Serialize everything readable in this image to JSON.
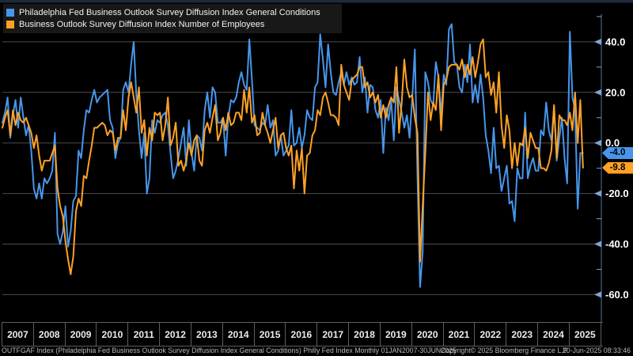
{
  "legend": {
    "items": [
      {
        "label": "Philadelphia Fed Business Outlook Survey Diffusion Index General Conditions",
        "color": "#4796ec"
      },
      {
        "label": "Business Outlook Survey Diffusion Index Number of Employees",
        "color": "#ffa226"
      }
    ]
  },
  "chart_data": {
    "type": "line",
    "title": "Philadelphia Fed Business Outlook Survey Diffusion Index",
    "frequency": "Monthly",
    "period": "01JAN2007-30JUN2025",
    "x_tick_years": [
      "2007",
      "2008",
      "2009",
      "2010",
      "2011",
      "2012",
      "2013",
      "2014",
      "2015",
      "2016",
      "2017",
      "2018",
      "2019",
      "2020",
      "2021",
      "2022",
      "2023",
      "2024",
      "2025"
    ],
    "y_ticks": [
      40,
      20,
      0,
      -20,
      -40,
      -60
    ],
    "y_tick_labels": [
      "40.0",
      "20.0",
      "0.0",
      "-20.0",
      "-40.0",
      "-60.0"
    ],
    "y_minor_ticks": [
      50,
      30,
      10,
      -10,
      -30,
      -50
    ],
    "ylim": [
      -70,
      51
    ],
    "grid": "horizontal",
    "legend_position": "top-left",
    "colors": {
      "grid": "#4c4c4c",
      "axis": "#35506e",
      "tick_arrow": "#7ea6d4",
      "background": "#000000"
    },
    "series": [
      {
        "name": "Philadelphia Fed Business Outlook Survey Diffusion Index General Conditions",
        "color": "#4796ec",
        "last_value": -4.0,
        "last_label": "-4.0",
        "start": "2007-01",
        "values": [
          8,
          12,
          18,
          2,
          11,
          17,
          6,
          18,
          10,
          3,
          7,
          -3,
          -18,
          -22,
          -16,
          -22,
          -14,
          -16,
          -14,
          -11,
          4,
          -36,
          -40,
          -35,
          -25,
          -41,
          -35,
          -23,
          -21,
          -3,
          -6,
          5,
          13,
          12,
          17,
          21,
          16,
          18,
          19,
          20,
          21,
          9,
          6,
          -6,
          0,
          2,
          21,
          24,
          20,
          31,
          40,
          19,
          5,
          -6,
          4,
          -20,
          -14,
          9,
          4,
          9,
          8,
          11,
          12,
          7,
          -4,
          -14,
          -11,
          -6,
          0,
          6,
          -9,
          9,
          -4,
          -11,
          3,
          2,
          -3,
          13,
          20,
          10,
          22,
          20,
          8,
          8,
          10,
          -5,
          10,
          17,
          16,
          18,
          24,
          28,
          23,
          21,
          41,
          25,
          7,
          6,
          5,
          8,
          7,
          15,
          6,
          9,
          -5,
          -3,
          3,
          -5,
          -3,
          -1,
          13,
          -1,
          0,
          6,
          -2,
          3,
          13,
          10,
          9,
          22,
          24,
          43,
          33,
          22,
          39,
          28,
          20,
          19,
          24,
          28,
          23,
          28,
          23,
          26,
          23,
          24,
          34,
          20,
          26,
          12,
          23,
          22,
          13,
          10,
          17,
          -4,
          14,
          9,
          17,
          1,
          22,
          17,
          12,
          6,
          11,
          2,
          17,
          37,
          -13,
          -57,
          -43,
          28,
          24,
          17,
          15,
          32,
          26,
          11,
          27,
          23,
          45,
          47,
          32,
          31,
          22,
          20,
          31,
          24,
          39,
          16,
          23,
          16,
          27,
          18,
          3,
          -3,
          -12,
          6,
          -10,
          -9,
          -19,
          -14,
          -9,
          -24,
          -23,
          -31,
          -10,
          -14,
          -14,
          12,
          -14,
          -9,
          -6,
          -11,
          -11,
          5,
          3,
          16,
          5,
          1,
          14,
          -7,
          2,
          10,
          -6,
          -16,
          44,
          18,
          13,
          -26,
          -4,
          -4
        ]
      },
      {
        "name": "Business Outlook Survey Diffusion Index Number of Employees",
        "color": "#ffa226",
        "last_value": -9.8,
        "last_label": "-9.8",
        "start": "2007-01",
        "values": [
          6,
          10,
          13,
          3,
          13,
          7,
          12,
          9,
          8,
          10,
          7,
          4,
          -2,
          3,
          -5,
          -11,
          -7,
          -7,
          -7,
          -4,
          -1,
          -18,
          -25,
          -29,
          -39,
          -46,
          -52,
          -45,
          -27,
          -22,
          -25,
          -13,
          -14,
          -7,
          -1,
          6,
          6,
          7,
          8,
          7,
          3,
          5,
          4,
          -3,
          2,
          2,
          13,
          5,
          18,
          24,
          18,
          12,
          22,
          4,
          9,
          -5,
          6,
          1,
          12,
          11,
          12,
          1,
          7,
          18,
          -1,
          2,
          8,
          -9,
          -7,
          -11,
          -7,
          0,
          -5,
          1,
          3,
          -7,
          -9,
          5,
          8,
          4,
          10,
          15,
          1,
          4,
          10,
          5,
          12,
          7,
          8,
          12,
          12,
          9,
          21,
          12,
          22,
          8,
          11,
          3,
          4,
          12,
          7,
          4,
          0,
          5,
          10,
          -2,
          3,
          4,
          -2,
          -5,
          -1,
          -18,
          -3,
          -11,
          -2,
          -20,
          -5,
          -4,
          3,
          5,
          13,
          11,
          18,
          20,
          16,
          11,
          11,
          10,
          7,
          31,
          23,
          20,
          17,
          25,
          26,
          27,
          30,
          30,
          22,
          24,
          18,
          20,
          16,
          19,
          10,
          15,
          10,
          15,
          18,
          16,
          30,
          4,
          16,
          33,
          22,
          18,
          19,
          10,
          4,
          -47,
          -25,
          -4,
          20,
          9,
          16,
          13,
          27,
          5,
          23,
          25,
          30,
          31,
          31,
          31,
          29,
          33,
          26,
          31,
          27,
          34,
          26,
          32,
          39,
          41,
          26,
          28,
          19,
          24,
          12,
          28,
          7,
          -2,
          11,
          5,
          -10,
          0,
          -9,
          0,
          -1,
          6,
          -6,
          4,
          1,
          -2,
          -2,
          -10,
          -10,
          -11,
          -8,
          -3,
          15,
          -6,
          11,
          9,
          9,
          7,
          12,
          5,
          20,
          0,
          17,
          -9.8
        ]
      }
    ]
  },
  "footer": {
    "left": "OUTFGAF Index (Philadelphia Fed Business Outlook Survey Diffusion Index General Conditions) Philly Fed Index  Monthly 01JAN2007-30JUN2025",
    "center": "Copyright© 2025 Bloomberg Finance L.P.",
    "right": "20-Jun-2025 08:33:46"
  }
}
